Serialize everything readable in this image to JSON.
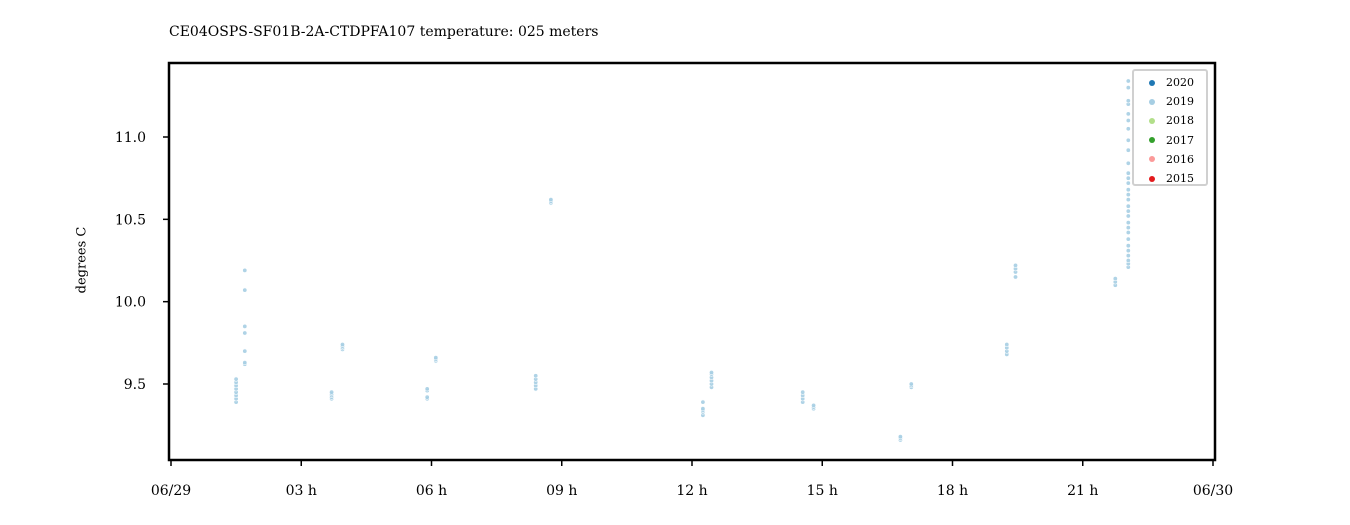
{
  "title": "CE04OSPS-SF01B-2A-CTDPFA107 temperature: 025 meters",
  "chart_data": {
    "type": "scatter",
    "title": "CE04OSPS-SF01B-2A-CTDPFA107 temperature: 025 meters",
    "xlabel": "",
    "ylabel": "degrees C",
    "x_unit": "hours (06/29 00:00 to 06/30 00:00)",
    "xlim": [
      0,
      24
    ],
    "ylim": [
      9.05,
      11.43
    ],
    "x_ticks": [
      0,
      3,
      6,
      9,
      12,
      15,
      18,
      21,
      24
    ],
    "x_tick_labels": [
      "06/29",
      "03 h",
      "06 h",
      "09 h",
      "12 h",
      "15 h",
      "18 h",
      "21 h",
      "06/30"
    ],
    "y_ticks": [
      9.5,
      10.0,
      10.5,
      11.0
    ],
    "y_tick_labels": [
      "9.5",
      "10.0",
      "10.5",
      "11.0"
    ],
    "grid": false,
    "legend_position": "top-right",
    "legend": [
      {
        "name": "2020",
        "color": "#1f78b4"
      },
      {
        "name": "2019",
        "color": "#a6cee3"
      },
      {
        "name": "2018",
        "color": "#b2df8a"
      },
      {
        "name": "2017",
        "color": "#33a02c"
      },
      {
        "name": "2016",
        "color": "#fb9a99"
      },
      {
        "name": "2015",
        "color": "#e31a1c"
      }
    ],
    "series": [
      {
        "name": "2019",
        "color": "#a6cee3",
        "points": [
          [
            1.5,
            9.39
          ],
          [
            1.5,
            9.41
          ],
          [
            1.5,
            9.43
          ],
          [
            1.5,
            9.45
          ],
          [
            1.5,
            9.47
          ],
          [
            1.5,
            9.49
          ],
          [
            1.5,
            9.51
          ],
          [
            1.5,
            9.53
          ],
          [
            1.7,
            9.62
          ],
          [
            1.7,
            9.63
          ],
          [
            1.7,
            9.7
          ],
          [
            1.7,
            9.81
          ],
          [
            1.7,
            9.85
          ],
          [
            1.7,
            10.07
          ],
          [
            1.7,
            10.19
          ],
          [
            3.7,
            9.41
          ],
          [
            3.7,
            9.42
          ],
          [
            3.7,
            9.43
          ],
          [
            3.7,
            9.44
          ],
          [
            3.7,
            9.45
          ],
          [
            3.95,
            9.71
          ],
          [
            3.95,
            9.72
          ],
          [
            3.95,
            9.73
          ],
          [
            3.95,
            9.74
          ],
          [
            5.9,
            9.41
          ],
          [
            5.9,
            9.42
          ],
          [
            5.9,
            9.46
          ],
          [
            5.9,
            9.47
          ],
          [
            6.1,
            9.64
          ],
          [
            6.1,
            9.65
          ],
          [
            6.1,
            9.66
          ],
          [
            8.4,
            9.47
          ],
          [
            8.4,
            9.49
          ],
          [
            8.4,
            9.51
          ],
          [
            8.4,
            9.53
          ],
          [
            8.4,
            9.55
          ],
          [
            8.75,
            10.6
          ],
          [
            8.75,
            10.61
          ],
          [
            8.75,
            10.62
          ],
          [
            12.25,
            9.31
          ],
          [
            12.25,
            9.33
          ],
          [
            12.25,
            9.34
          ],
          [
            12.25,
            9.35
          ],
          [
            12.25,
            9.39
          ],
          [
            12.45,
            9.48
          ],
          [
            12.45,
            9.5
          ],
          [
            12.45,
            9.52
          ],
          [
            12.45,
            9.54
          ],
          [
            12.45,
            9.56
          ],
          [
            12.45,
            9.57
          ],
          [
            14.55,
            9.39
          ],
          [
            14.55,
            9.41
          ],
          [
            14.55,
            9.43
          ],
          [
            14.55,
            9.45
          ],
          [
            14.8,
            9.35
          ],
          [
            14.8,
            9.36
          ],
          [
            14.8,
            9.37
          ],
          [
            16.8,
            9.16
          ],
          [
            16.8,
            9.17
          ],
          [
            16.8,
            9.18
          ],
          [
            17.05,
            9.48
          ],
          [
            17.05,
            9.49
          ],
          [
            17.05,
            9.5
          ],
          [
            19.25,
            9.68
          ],
          [
            19.25,
            9.7
          ],
          [
            19.25,
            9.72
          ],
          [
            19.25,
            9.74
          ],
          [
            19.45,
            10.15
          ],
          [
            19.45,
            10.18
          ],
          [
            19.45,
            10.2
          ],
          [
            19.45,
            10.22
          ],
          [
            21.75,
            10.1
          ],
          [
            21.75,
            10.12
          ],
          [
            21.75,
            10.14
          ],
          [
            22.05,
            10.21
          ],
          [
            22.05,
            10.23
          ],
          [
            22.05,
            10.25
          ],
          [
            22.05,
            10.28
          ],
          [
            22.05,
            10.31
          ],
          [
            22.05,
            10.34
          ],
          [
            22.05,
            10.38
          ],
          [
            22.05,
            10.42
          ],
          [
            22.05,
            10.45
          ],
          [
            22.05,
            10.48
          ],
          [
            22.05,
            10.52
          ],
          [
            22.05,
            10.55
          ],
          [
            22.05,
            10.58
          ],
          [
            22.05,
            10.62
          ],
          [
            22.05,
            10.65
          ],
          [
            22.05,
            10.68
          ],
          [
            22.05,
            10.72
          ],
          [
            22.05,
            10.75
          ],
          [
            22.05,
            10.78
          ],
          [
            22.05,
            10.84
          ],
          [
            22.05,
            10.92
          ],
          [
            22.05,
            10.98
          ],
          [
            22.05,
            11.05
          ],
          [
            22.05,
            11.1
          ],
          [
            22.05,
            11.14
          ],
          [
            22.05,
            11.2
          ],
          [
            22.05,
            11.22
          ],
          [
            22.05,
            11.3
          ],
          [
            22.05,
            11.34
          ]
        ]
      }
    ]
  }
}
